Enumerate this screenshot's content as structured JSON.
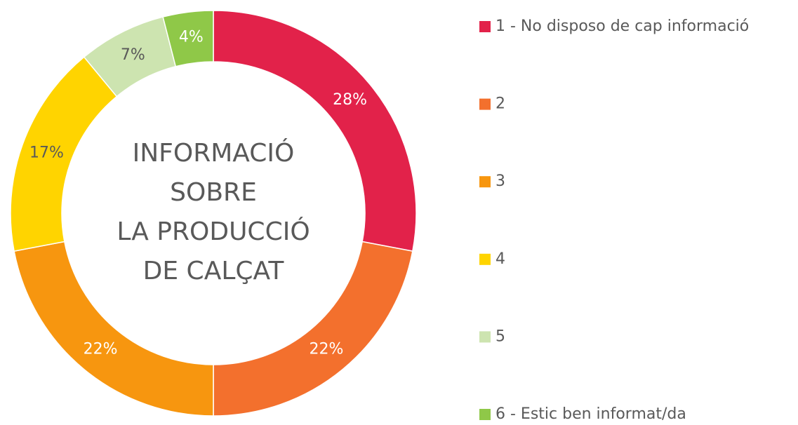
{
  "chart_data": {
    "type": "pie",
    "donut": true,
    "center_text": [
      "INFORMACIÓ",
      "SOBRE",
      "LA PRODUCCIÓ",
      "DE CALÇAT"
    ],
    "categories": [
      "1 - No disposo de cap informació",
      "2",
      "3",
      "4",
      "5",
      "6 - Estic ben informat/da"
    ],
    "values": [
      28,
      22,
      22,
      17,
      7,
      4
    ],
    "value_labels": [
      "28%",
      "22%",
      "22%",
      "17%",
      "7%",
      "4%"
    ],
    "colors": [
      "#e2224a",
      "#f3702d",
      "#f7960f",
      "#ffd400",
      "#cde4b0",
      "#8fc848"
    ],
    "legend": "right"
  }
}
